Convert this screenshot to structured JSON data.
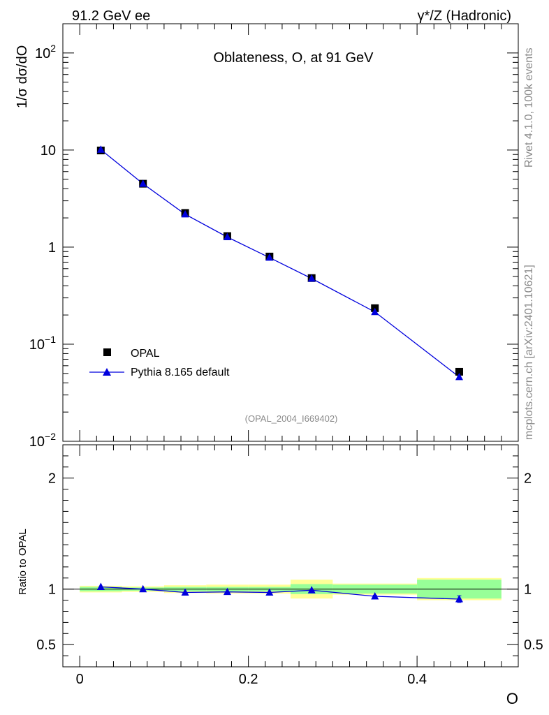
{
  "header": {
    "left": "91.2 GeV ee",
    "right": "γ*/Z (Hadronic)"
  },
  "side": {
    "rivet": "Rivet 4.1.0,  100k events",
    "mcplots": "mcplots.cern.ch [arXiv:2401.10621]"
  },
  "chart_data": {
    "type": "scatter",
    "title": "Oblateness, O, at 91 GeV",
    "analysis_tag": "(OPAL_2004_I669402)",
    "xlabel": "O",
    "ylabel": "1/σ  dσ/dO",
    "ratio_ylabel": "Ratio to OPAL",
    "xlim": [
      -0.02,
      0.52
    ],
    "ylim": [
      0.01,
      200
    ],
    "ylog": true,
    "ratio_ylim": [
      0.3,
      2.3
    ],
    "x_ticks": [
      "0",
      "0.2",
      "0.4"
    ],
    "y_ticks": [
      "10⁻²",
      "10⁻¹",
      "1",
      "10",
      "10²"
    ],
    "ratio_ticks": [
      "0.5",
      "1",
      "2"
    ],
    "bins": [
      [
        0,
        0.05
      ],
      [
        0.05,
        0.1
      ],
      [
        0.1,
        0.15
      ],
      [
        0.15,
        0.2
      ],
      [
        0.2,
        0.25
      ],
      [
        0.25,
        0.3
      ],
      [
        0.3,
        0.4
      ],
      [
        0.4,
        0.5
      ]
    ],
    "x": [
      0.025,
      0.075,
      0.125,
      0.175,
      0.225,
      0.275,
      0.35,
      0.45
    ],
    "series": [
      {
        "name": "OPAL",
        "marker": "square",
        "color": "#000000",
        "values": [
          9.9,
          4.5,
          2.25,
          1.3,
          0.8,
          0.48,
          0.235,
          0.052
        ],
        "errors": [
          0.25,
          0.1,
          0.06,
          0.03,
          0.02,
          0.012,
          0.008,
          0.003
        ]
      },
      {
        "name": "Pythia 8.165 default",
        "marker": "triangle",
        "color": "#0000dd",
        "values": [
          10.1,
          4.5,
          2.18,
          1.27,
          0.78,
          0.475,
          0.215,
          0.046
        ],
        "errors": [
          0.08,
          0.04,
          0.02,
          0.012,
          0.008,
          0.006,
          0.003,
          0.002
        ]
      }
    ],
    "ratio": {
      "values": [
        1.02,
        1.0,
        0.97,
        0.975,
        0.97,
        0.99,
        0.935,
        0.91
      ],
      "errors": [
        0.005,
        0.005,
        0.006,
        0.006,
        0.007,
        0.008,
        0.01,
        0.03
      ],
      "band_inner": [
        0.02,
        0.015,
        0.02,
        0.02,
        0.02,
        0.045,
        0.04,
        0.085
      ],
      "band_outer": [
        0.03,
        0.025,
        0.035,
        0.04,
        0.04,
        0.085,
        0.05,
        0.1
      ],
      "band_inner_color": "#98ff98",
      "band_outer_color": "#ffff98"
    }
  }
}
